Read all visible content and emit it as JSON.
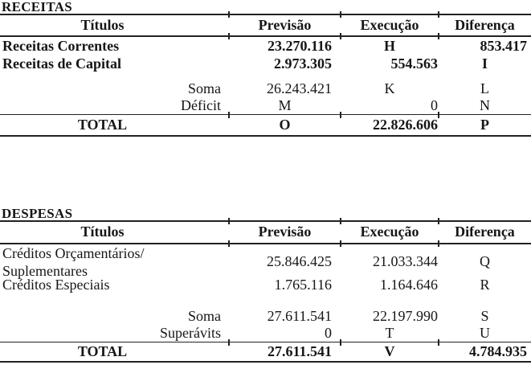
{
  "receitas": {
    "heading": "RECEITAS",
    "columns": {
      "titulos": "Títulos",
      "previsao": "Previsão",
      "execucao": "Execução",
      "diferenca": "Diferença"
    },
    "rows": [
      {
        "titulo": "Receitas Correntes",
        "previsao": "23.270.116",
        "execucao": "H",
        "diferenca": "853.417"
      },
      {
        "titulo": "Receitas de Capital",
        "previsao": "2.973.305",
        "execucao": "554.563",
        "diferenca": "I"
      },
      {
        "titulo": "Soma",
        "previsao": "26.243.421",
        "execucao": "K",
        "diferenca": "L"
      },
      {
        "titulo": "Déficit",
        "previsao": "M",
        "execucao": "0",
        "diferenca": "N"
      },
      {
        "titulo": "TOTAL",
        "previsao": "O",
        "execucao": "22.826.606",
        "diferenca": "P"
      }
    ]
  },
  "despesas": {
    "heading": "DESPESAS",
    "columns": {
      "titulos": "Títulos",
      "previsao": "Previsão",
      "execucao": "Execução",
      "diferenca": "Diferença"
    },
    "rows": [
      {
        "titulo": "Créditos Orçamentários/\nSuplementares",
        "previsao": "25.846.425",
        "execucao": "21.033.344",
        "diferenca": "Q"
      },
      {
        "titulo": "Créditos Especiais",
        "previsao": "1.765.116",
        "execucao": "1.164.646",
        "diferenca": "R"
      },
      {
        "titulo": "Soma",
        "previsao": "27.611.541",
        "execucao": "22.197.990",
        "diferenca": "S"
      },
      {
        "titulo": "Superávits",
        "previsao": "0",
        "execucao": "T",
        "diferenca": "U"
      },
      {
        "titulo": "TOTAL",
        "previsao": "27.611.541",
        "execucao": "V",
        "diferenca": "4.784.935"
      }
    ]
  }
}
